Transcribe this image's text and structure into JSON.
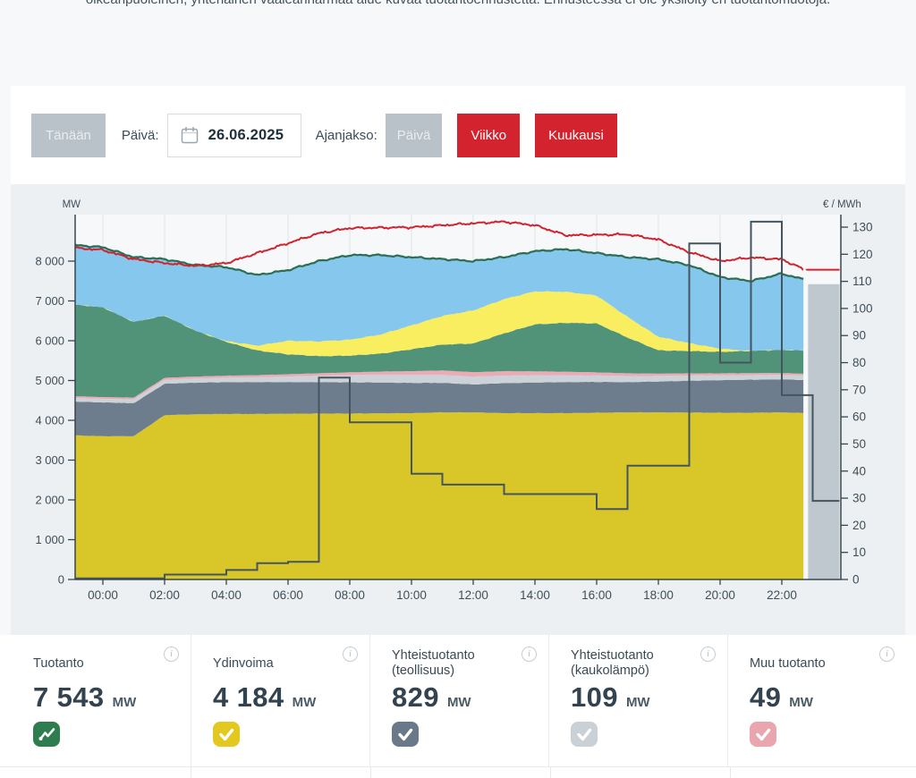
{
  "page": {
    "top_note": "oikeanpuoleinen, yhtenäinen vaaleanharmaa alue kuvaa tuotantoennustetta. Ennusteessa ei ole yksilöity eri tuotantomuotoja."
  },
  "toolbar": {
    "today_button": "Tänään",
    "date_label": "Päivä:",
    "date_value": "26.06.2025",
    "period_label": "Ajanjakso:",
    "period_day": "Päivä",
    "period_week": "Viikko",
    "period_month": "Kuukausi",
    "accent_red": "#d2232e",
    "inactive_gray": "#b9c2c9"
  },
  "chart_data": {
    "type": "area",
    "stacked": true,
    "ylabel_left": "MW",
    "ylabel_right": "€ / MWh",
    "x_tick_hours": [
      0,
      2,
      4,
      6,
      8,
      10,
      12,
      14,
      16,
      18,
      20,
      22
    ],
    "x_tick_labels": [
      "00:00",
      "02:00",
      "04:00",
      "06:00",
      "08:00",
      "10:00",
      "12:00",
      "14:00",
      "16:00",
      "18:00",
      "20:00",
      "22:00"
    ],
    "y_left_ticks": [
      0,
      1000,
      2000,
      3000,
      4000,
      5000,
      6000,
      7000,
      8000
    ],
    "y_left_tick_labels": [
      "0",
      "1 000",
      "2 000",
      "3 000",
      "4 000",
      "5 000",
      "6 000",
      "7 000",
      "8 000"
    ],
    "y_left_max": 9170,
    "y_right_ticks": [
      0,
      10,
      20,
      30,
      40,
      50,
      60,
      70,
      80,
      90,
      100,
      110,
      120,
      130
    ],
    "y_right_max": 134.6,
    "x_range": [
      -0.9,
      23.87
    ],
    "data_end_hour": 22.7,
    "x_hours": [
      -0.9,
      0,
      1,
      2,
      3,
      4,
      5,
      6,
      7,
      8,
      9,
      10,
      11,
      12,
      13,
      14,
      15,
      16,
      17,
      18,
      19,
      20,
      21,
      22,
      22.7
    ],
    "layers": [
      {
        "name": "ydinvoima",
        "color": "#d9c629",
        "values": [
          3620,
          3600,
          3600,
          4130,
          4150,
          4160,
          4160,
          4165,
          4170,
          4170,
          4175,
          4180,
          4200,
          4200,
          4180,
          4180,
          4180,
          4190,
          4200,
          4200,
          4195,
          4190,
          4190,
          4200,
          4184
        ]
      },
      {
        "name": "yhteistuotanto_teollisuus",
        "color": "#6e7d8d",
        "values": [
          850,
          850,
          830,
          790,
          795,
          800,
          800,
          795,
          790,
          785,
          775,
          760,
          742,
          700,
          755,
          770,
          780,
          775,
          760,
          775,
          800,
          820,
          830,
          830,
          829
        ]
      },
      {
        "name": "yhteistuotanto_kaukolampo",
        "color": "#ccd3d8",
        "values": [
          90,
          90,
          95,
          100,
          105,
          110,
          120,
          140,
          160,
          180,
          195,
          200,
          200,
          195,
          190,
          180,
          170,
          160,
          150,
          140,
          130,
          120,
          115,
          110,
          109
        ]
      },
      {
        "name": "muu_tuotanto",
        "color": "#ecaab5",
        "values": [
          45,
          45,
          45,
          48,
          50,
          52,
          55,
          58,
          62,
          70,
          80,
          95,
          110,
          115,
          110,
          100,
          90,
          80,
          70,
          60,
          55,
          50,
          50,
          49,
          49
        ]
      },
      {
        "name": "hydro_green",
        "color": "#519379",
        "values": [
          2300,
          2250,
          1900,
          1560,
          1150,
          850,
          620,
          500,
          430,
          420,
          450,
          550,
          650,
          720,
          950,
          1180,
          1230,
          1230,
          900,
          585,
          560,
          540,
          560,
          580,
          580
        ]
      },
      {
        "name": "solar_yellow",
        "color": "#f8ee60",
        "values": [
          0,
          0,
          0,
          0,
          0,
          20,
          120,
          340,
          370,
          400,
          480,
          600,
          720,
          830,
          860,
          830,
          780,
          700,
          520,
          340,
          200,
          80,
          0,
          0,
          0
        ]
      },
      {
        "name": "wind_blue",
        "color": "#86c7ed",
        "values": [
          1495,
          1515,
          1630,
          1422,
          1650,
          1858,
          1775,
          1777,
          2018,
          2125,
          1995,
          1715,
          1428,
          1240,
          1055,
          1010,
          1070,
          1065,
          1500,
          1945,
          1960,
          1800,
          1755,
          1916,
          1792
        ]
      }
    ],
    "production_line": {
      "name": "tuotanto_total",
      "color": "#2d6e52"
    },
    "consumption_line": {
      "name": "kulutus",
      "color": "#d2222d",
      "values": [
        8330,
        8280,
        8050,
        7950,
        7880,
        7950,
        8200,
        8450,
        8700,
        8830,
        8840,
        8850,
        8900,
        8950,
        8990,
        8900,
        8650,
        8660,
        8670,
        8540,
        8225,
        8000,
        8090,
        8045,
        7800
      ]
    },
    "price_line": {
      "name": "hinta",
      "color": "#44555f",
      "steps": [
        [
          -0.9,
          0.4
        ],
        [
          2,
          1.8
        ],
        [
          4,
          3.5
        ],
        [
          5,
          6
        ],
        [
          6,
          6.5
        ],
        [
          7,
          74.5
        ],
        [
          8,
          58
        ],
        [
          10,
          39
        ],
        [
          11,
          35
        ],
        [
          13,
          31.5
        ],
        [
          16,
          26
        ],
        [
          17,
          42
        ],
        [
          19,
          124
        ],
        [
          20,
          80
        ],
        [
          21,
          132
        ],
        [
          22,
          68
        ],
        [
          23,
          29
        ]
      ]
    },
    "forecast": {
      "start_hour": 22.85,
      "production_mw": 7420,
      "consumption_mw": 7785,
      "area_color": "#c0c8cf"
    }
  },
  "cards": [
    {
      "title": "Tuotanto",
      "value": "7 543",
      "unit": "MW",
      "icon": "line-chart",
      "icon_color": "#2e7d4e",
      "info": "i"
    },
    {
      "title": "Ydinvoima",
      "value": "4 184",
      "unit": "MW",
      "icon": "check",
      "icon_color": "#e2c81f",
      "info": "i"
    },
    {
      "title": "Yhteistuotanto (teollisuus)",
      "value": "829",
      "unit": "MW",
      "icon": "check",
      "icon_color": "#6a7989",
      "info": "i"
    },
    {
      "title": "Yhteistuotanto (kaukolämpö)",
      "value": "109",
      "unit": "MW",
      "icon": "check",
      "icon_color": "#c9d1d7",
      "info": "i"
    },
    {
      "title": "Muu tuotanto",
      "value": "49",
      "unit": "MW",
      "icon": "check",
      "icon_color": "#e9a6ae",
      "info": "i"
    }
  ]
}
